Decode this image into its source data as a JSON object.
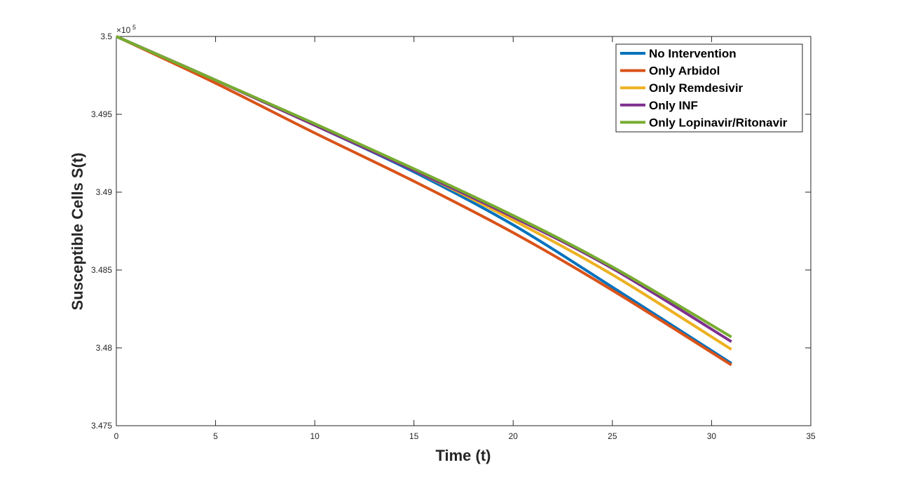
{
  "chart_data": {
    "type": "line",
    "xlabel": "Time (t)",
    "ylabel": "Susceptible Cells S(t)",
    "y_multiplier_label": "×10",
    "y_multiplier_exponent": "5",
    "xlim": [
      0,
      35
    ],
    "ylim": [
      3.475,
      3.5
    ],
    "x_ticks": [
      0,
      5,
      10,
      15,
      20,
      25,
      30,
      35
    ],
    "y_ticks": [
      3.475,
      3.48,
      3.485,
      3.49,
      3.495,
      3.5
    ],
    "x_tick_labels": [
      "0",
      "5",
      "10",
      "15",
      "20",
      "25",
      "30",
      "35"
    ],
    "y_tick_labels": [
      "3.475",
      "3.48",
      "3.485",
      "3.49",
      "3.495",
      "3.5"
    ],
    "grid": false,
    "legend_position": "top-right",
    "series": [
      {
        "name": "No Intervention",
        "color": "#0072BD",
        "x": [
          0,
          5,
          10,
          15,
          20,
          25,
          31
        ],
        "y": [
          3.5,
          3.4972,
          3.4943,
          3.4913,
          3.4879,
          3.4839,
          3.479
        ]
      },
      {
        "name": "Only Arbidol",
        "color": "#D95319",
        "x": [
          0,
          5,
          10,
          15,
          20,
          25,
          31
        ],
        "y": [
          3.5,
          3.497,
          3.4938,
          3.4907,
          3.4874,
          3.4837,
          3.4789
        ]
      },
      {
        "name": "Only Remdesivir",
        "color": "#EDB120",
        "x": [
          0,
          5,
          10,
          15,
          20,
          25,
          31
        ],
        "y": [
          3.5,
          3.4972,
          3.4943,
          3.4914,
          3.4882,
          3.4847,
          3.4799
        ]
      },
      {
        "name": "Only INF",
        "color": "#7E2F8E",
        "x": [
          0,
          5,
          10,
          15,
          20,
          25,
          31
        ],
        "y": [
          3.5,
          3.4972,
          3.4943,
          3.4914,
          3.4884,
          3.4851,
          3.4804
        ]
      },
      {
        "name": "Only Lopinavir/Ritonavir",
        "color": "#77AC30",
        "x": [
          0,
          5,
          10,
          15,
          20,
          25,
          31
        ],
        "y": [
          3.5,
          3.4972,
          3.4944,
          3.4915,
          3.4885,
          3.4852,
          3.4807
        ]
      }
    ]
  }
}
